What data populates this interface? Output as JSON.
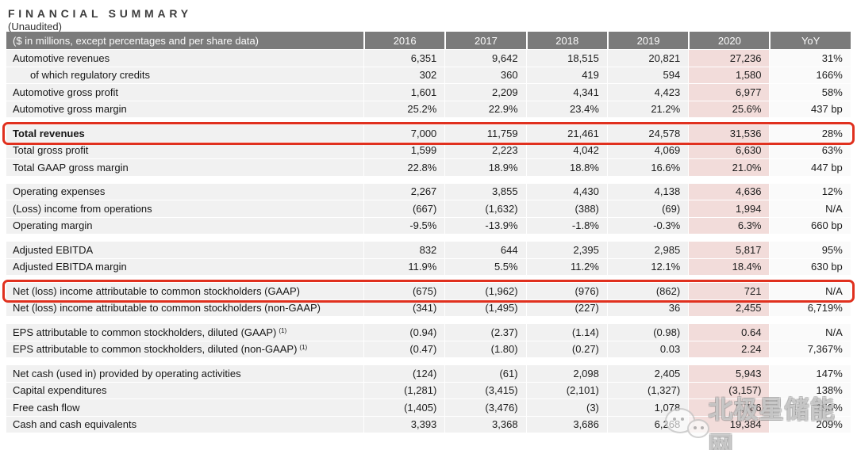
{
  "header": {
    "title": "FINANCIAL SUMMARY",
    "subtitle": "(Unaudited)"
  },
  "table": {
    "label_header": "($ in millions, except percentages and per share data)",
    "year_headers": [
      "2016",
      "2017",
      "2018",
      "2019",
      "2020",
      "YoY"
    ],
    "highlight_column": "2020",
    "sections": [
      {
        "rows": [
          {
            "label": "Automotive revenues",
            "values": [
              "6,351",
              "9,642",
              "18,515",
              "20,821",
              "27,236",
              "31%"
            ]
          },
          {
            "label": "of which regulatory credits",
            "indent": true,
            "values": [
              "302",
              "360",
              "419",
              "594",
              "1,580",
              "166%"
            ]
          },
          {
            "label": "Automotive gross profit",
            "values": [
              "1,601",
              "2,209",
              "4,341",
              "4,423",
              "6,977",
              "58%"
            ]
          },
          {
            "label": "Automotive gross margin",
            "values": [
              "25.2%",
              "22.9%",
              "23.4%",
              "21.2%",
              "25.6%",
              "437 bp"
            ]
          }
        ]
      },
      {
        "rows": [
          {
            "label": "Total revenues",
            "bold": true,
            "highlight": true,
            "values": [
              "7,000",
              "11,759",
              "21,461",
              "24,578",
              "31,536",
              "28%"
            ]
          },
          {
            "label": "Total gross profit",
            "values": [
              "1,599",
              "2,223",
              "4,042",
              "4,069",
              "6,630",
              "63%"
            ]
          },
          {
            "label": "Total GAAP gross margin",
            "values": [
              "22.8%",
              "18.9%",
              "18.8%",
              "16.6%",
              "21.0%",
              "447 bp"
            ]
          }
        ]
      },
      {
        "rows": [
          {
            "label": "Operating expenses",
            "values": [
              "2,267",
              "3,855",
              "4,430",
              "4,138",
              "4,636",
              "12%"
            ]
          },
          {
            "label": "(Loss) income from operations",
            "values": [
              "(667)",
              "(1,632)",
              "(388)",
              "(69)",
              "1,994",
              "N/A"
            ]
          },
          {
            "label": "Operating margin",
            "values": [
              "-9.5%",
              "-13.9%",
              "-1.8%",
              "-0.3%",
              "6.3%",
              "660 bp"
            ]
          }
        ]
      },
      {
        "rows": [
          {
            "label": "Adjusted EBITDA",
            "values": [
              "832",
              "644",
              "2,395",
              "2,985",
              "5,817",
              "95%"
            ]
          },
          {
            "label": "Adjusted EBITDA margin",
            "values": [
              "11.9%",
              "5.5%",
              "11.2%",
              "12.1%",
              "18.4%",
              "630 bp"
            ]
          }
        ]
      },
      {
        "rows": [
          {
            "label": "Net (loss) income attributable to common stockholders (GAAP)",
            "highlight": true,
            "values": [
              "(675)",
              "(1,962)",
              "(976)",
              "(862)",
              "721",
              "N/A"
            ]
          },
          {
            "label": "Net (loss) income attributable to common stockholders (non-GAAP)",
            "values": [
              "(341)",
              "(1,495)",
              "(227)",
              "36",
              "2,455",
              "6,719%"
            ]
          }
        ]
      },
      {
        "rows": [
          {
            "label": "EPS attributable to common stockholders, diluted (GAAP)",
            "superscript": "(1)",
            "values": [
              "(0.94)",
              "(2.37)",
              "(1.14)",
              "(0.98)",
              "0.64",
              "N/A"
            ]
          },
          {
            "label": "EPS attributable to common stockholders, diluted (non-GAAP)",
            "superscript": "(1)",
            "values": [
              "(0.47)",
              "(1.80)",
              "(0.27)",
              "0.03",
              "2.24",
              "7,367%"
            ]
          }
        ]
      },
      {
        "rows": [
          {
            "label": "Net cash (used in) provided by operating activities",
            "values": [
              "(124)",
              "(61)",
              "2,098",
              "2,405",
              "5,943",
              "147%"
            ]
          },
          {
            "label": "Capital expenditures",
            "values": [
              "(1,281)",
              "(3,415)",
              "(2,101)",
              "(1,327)",
              "(3,157)",
              "138%"
            ]
          },
          {
            "label": "Free cash flow",
            "values": [
              "(1,405)",
              "(3,476)",
              "(3)",
              "1,078",
              "2,786",
              "158%"
            ]
          },
          {
            "label": "Cash and cash equivalents",
            "values": [
              "3,393",
              "3,368",
              "3,686",
              "6,268",
              "19,384",
              "209%"
            ]
          }
        ]
      }
    ]
  },
  "annotations": {
    "highlighted_rows": [
      "Total revenues",
      "Net (loss) income attributable to common stockholders (GAAP)"
    ],
    "highlight_box_color": "#e0301e"
  },
  "watermark": {
    "text": "北极星储能网",
    "logo": "wechat-bubbles-icon"
  },
  "colors": {
    "header_bg": "#7b7b7b",
    "row_bg": "#f1f1f1",
    "yoy_col_bg": "#fafafa",
    "col_2020_bg": "#f2dcda",
    "accent_red": "#e0301e"
  }
}
